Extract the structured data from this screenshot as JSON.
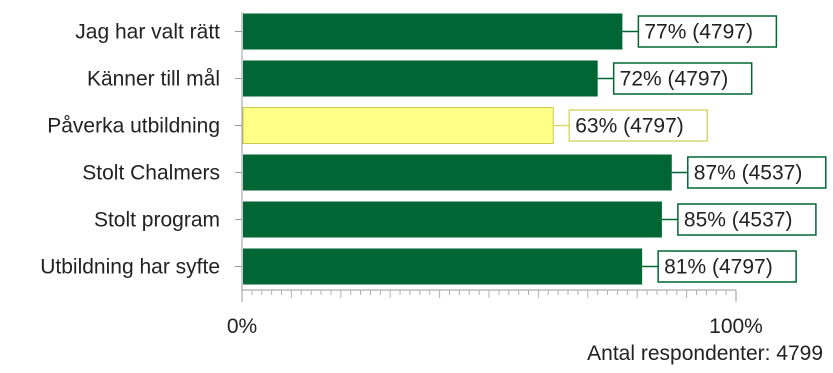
{
  "chart_data": {
    "type": "bar",
    "orientation": "horizontal",
    "categories": [
      "Jag har valt rätt",
      "Känner till mål",
      "Påverka utbildning",
      "Stolt Chalmers",
      "Stolt program",
      "Utbildning har syfte"
    ],
    "values": [
      77,
      72,
      63,
      87,
      85,
      81
    ],
    "counts": [
      4797,
      4797,
      4797,
      4537,
      4537,
      4797
    ],
    "labels": [
      "77% (4797)",
      "72% (4797)",
      "63% (4797)",
      "87% (4537)",
      "85% (4537)",
      "81% (4797)"
    ],
    "highlight_index": 2,
    "xlim": [
      0,
      100
    ],
    "xticks": [
      "0%",
      "100%"
    ],
    "grid": false,
    "colors": {
      "bar": "#006633",
      "highlight_bar": "#ffff88",
      "highlight_border": "#c8c850",
      "label_border": "#006633",
      "highlight_label_border": "#d8d870"
    }
  },
  "footnote": "Antal respondenter: 4799"
}
